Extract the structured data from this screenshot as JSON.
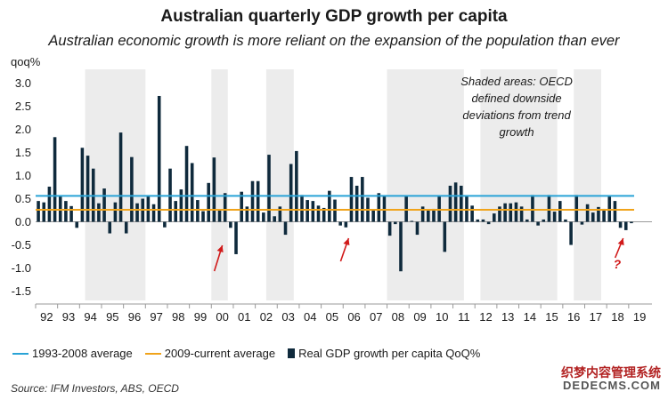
{
  "header": {
    "title": "Australian quarterly GDP growth per capita",
    "subtitle": "Australian economic growth is more reliant on the expansion of the population than ever"
  },
  "footer": {
    "source": "Source: IFM Investors, ABS, OECD",
    "watermark_line1": "织梦内容管理系统",
    "watermark_line2": "DEDECMS.COM"
  },
  "colors": {
    "bars": "#0f2a3c",
    "avg_1993_2008": "#29a3d6",
    "avg_2009_current": "#f0a31a",
    "shade": "#ececec",
    "arrows": "#d11a1a"
  },
  "chart_data": {
    "type": "bar",
    "title": "Australian quarterly GDP growth per capita",
    "ylabel": "qoq%",
    "ylim": [
      -1.7,
      3.2
    ],
    "yticks": [
      "3.0",
      "2.5",
      "2.0",
      "1.5",
      "1.0",
      "0.5",
      "0.0",
      "-0.5",
      "-1.0",
      "-1.5"
    ],
    "grid": false,
    "legend_position": "bottom",
    "x_start_year": 1992,
    "x_tick_labels": [
      "92",
      "93",
      "94",
      "95",
      "96",
      "97",
      "98",
      "99",
      "00",
      "01",
      "02",
      "03",
      "04",
      "05",
      "06",
      "07",
      "08",
      "09",
      "10",
      "11",
      "12",
      "13",
      "14",
      "15",
      "16",
      "17",
      "18",
      "19"
    ],
    "series": [
      {
        "name": "Real GDP growth per capita QoQ%",
        "values": [
          0.45,
          0.42,
          0.76,
          1.83,
          0.55,
          0.45,
          0.34,
          -0.13,
          1.6,
          1.43,
          1.15,
          0.4,
          0.72,
          -0.25,
          0.42,
          1.93,
          -0.25,
          1.4,
          0.4,
          0.5,
          0.57,
          0.38,
          2.72,
          -0.12,
          1.15,
          0.45,
          0.7,
          1.64,
          1.27,
          0.47,
          0.23,
          0.84,
          1.39,
          0.25,
          0.62,
          -0.13,
          -0.7,
          0.65,
          0.33,
          0.88,
          0.88,
          0.2,
          1.45,
          0.12,
          0.33,
          -0.28,
          1.25,
          1.53,
          0.58,
          0.47,
          0.45,
          0.35,
          0.3,
          0.67,
          0.48,
          -0.08,
          -0.12,
          0.97,
          0.78,
          0.97,
          0.52,
          0.25,
          0.62,
          0.55,
          -0.3,
          -0.05,
          -1.07,
          0.55,
          0.02,
          -0.28,
          0.33,
          0.25,
          0.28,
          0.55,
          -0.65,
          0.78,
          0.85,
          0.78,
          0.55,
          0.35,
          0.05,
          0.05,
          -0.05,
          0.18,
          0.33,
          0.4,
          0.4,
          0.42,
          0.33,
          0.05,
          0.58,
          -0.08,
          0.05,
          0.58,
          0.22,
          0.45,
          0.05,
          -0.5,
          0.58,
          -0.06,
          0.38,
          0.2,
          0.32,
          0.28,
          0.55,
          0.45,
          -0.13,
          -0.18,
          -0.03
        ]
      },
      {
        "name": "1993-2008 average",
        "value": 0.56
      },
      {
        "name": "2009-current average",
        "value": 0.26
      }
    ],
    "shaded_ranges": [
      [
        1994.25,
        1997.0
      ],
      [
        2000.0,
        2000.75
      ],
      [
        2002.5,
        2003.75
      ],
      [
        2008.0,
        2011.5
      ],
      [
        2012.25,
        2015.75
      ],
      [
        2016.5,
        2017.75
      ]
    ],
    "annotations": {
      "shaded_note": "Shaded areas: OECD defined downside deviations from trend growth",
      "shaded_note_lines": [
        "Shaded areas: OECD",
        "defined downside",
        "deviations from trend",
        "growth"
      ],
      "question_mark": "?",
      "arrow_years": [
        2000.5,
        2006.25,
        2018.75
      ]
    }
  }
}
